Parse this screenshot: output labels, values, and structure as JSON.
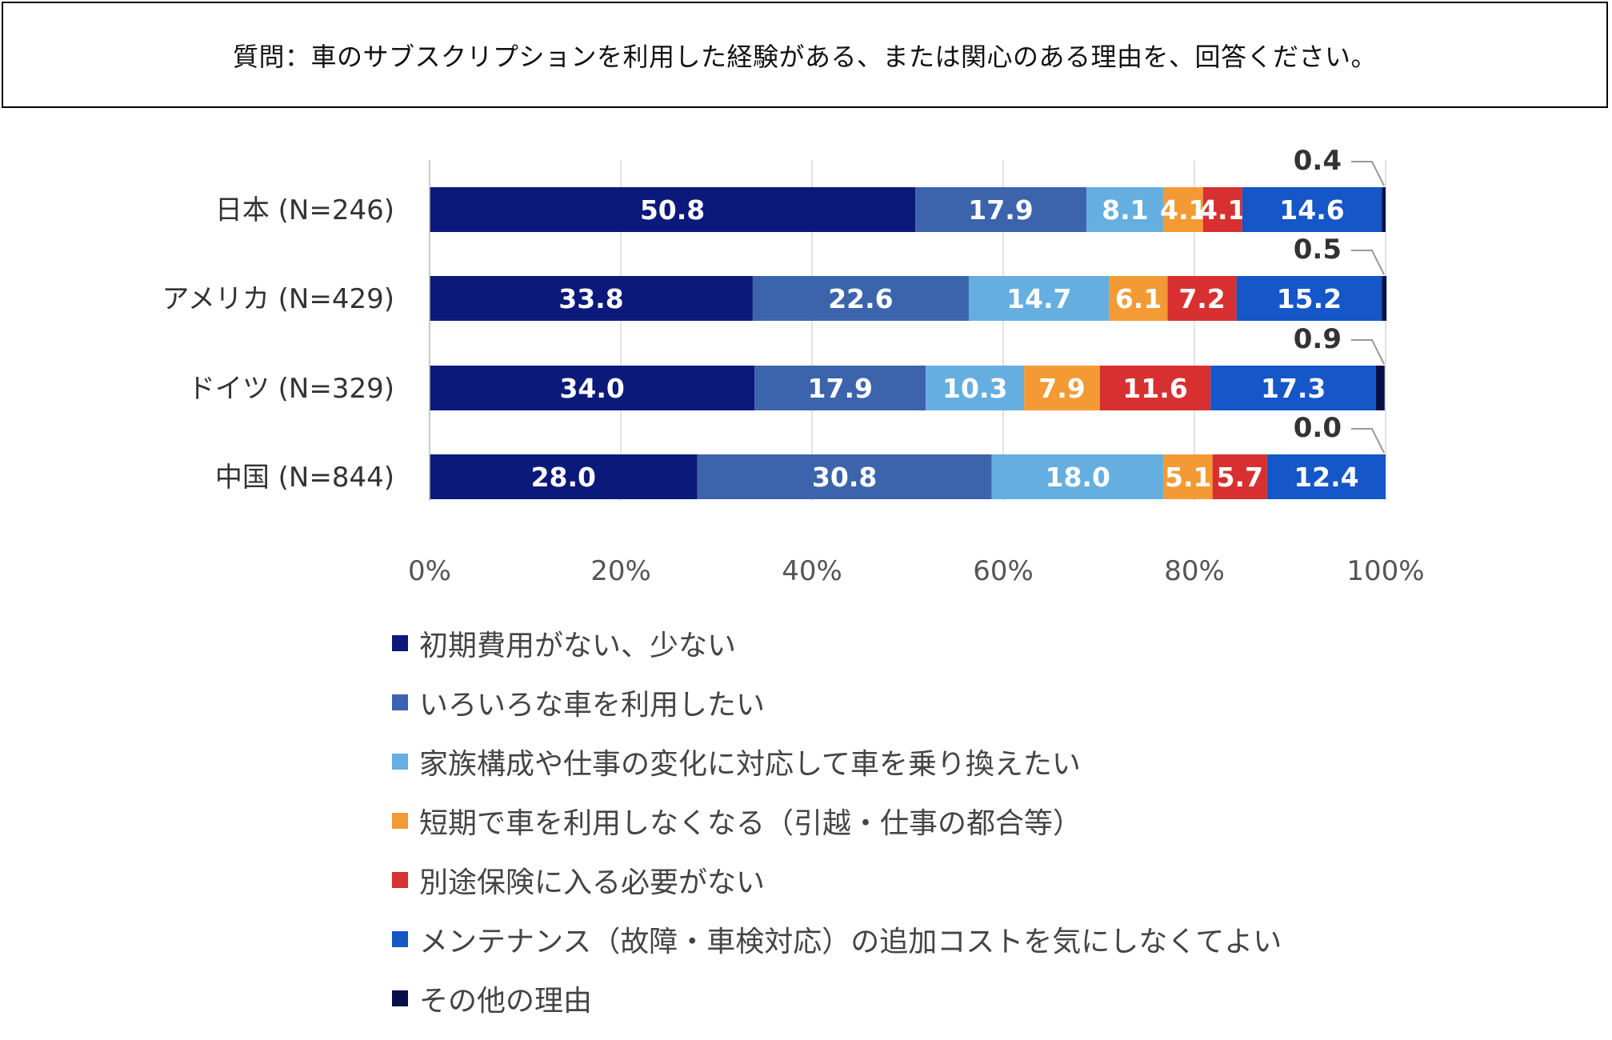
{
  "question": "質問：車のサブスクリプションを利用した経験がある、または関心のある理由を、回答ください。",
  "chart_data": {
    "type": "bar",
    "orientation": "horizontal",
    "stacked": true,
    "categories": [
      "日本 (N=246)",
      "アメリカ (N=429)",
      "ドイツ (N=329)",
      "中国 (N=844)"
    ],
    "series": [
      {
        "name": "初期費用がない、少ない",
        "color": "#0b1a7a",
        "values": [
          50.8,
          33.8,
          34.0,
          28.0
        ]
      },
      {
        "name": "いろいろな車を利用したい",
        "color": "#3c64ad",
        "values": [
          17.9,
          22.6,
          17.9,
          30.8
        ]
      },
      {
        "name": "家族構成や仕事の変化に対応して車を乗り換えたい",
        "color": "#65aee0",
        "values": [
          8.1,
          14.7,
          10.3,
          18.0
        ]
      },
      {
        "name": "短期で車を利用しなくなる（引越・仕事の都合等）",
        "color": "#f49a34",
        "values": [
          4.1,
          6.1,
          7.9,
          5.1
        ]
      },
      {
        "name": "別途保険に入る必要がない",
        "color": "#d83030",
        "values": [
          4.1,
          7.2,
          11.6,
          5.7
        ]
      },
      {
        "name": "メンテナンス（故障・車検対応）の追加コストを気にしなくてよい",
        "color": "#1556c8",
        "values": [
          14.6,
          15.2,
          17.3,
          12.4
        ]
      },
      {
        "name": "その他の理由",
        "color": "#081048",
        "values": [
          0.4,
          0.5,
          0.9,
          0.0
        ]
      }
    ],
    "value_labels": [
      [
        "50.8",
        "17.9",
        "8.1",
        "4.1",
        "4.1",
        "14.6",
        "0.4"
      ],
      [
        "33.8",
        "22.6",
        "14.7",
        "6.1",
        "7.2",
        "15.2",
        "0.5"
      ],
      [
        "34.0",
        "17.9",
        "10.3",
        "7.9",
        "11.6",
        "17.3",
        "0.9"
      ],
      [
        "28.0",
        "30.8",
        "18.0",
        "5.1",
        "5.7",
        "12.4",
        "0.0"
      ]
    ],
    "x_ticks": [
      "0%",
      "20%",
      "40%",
      "60%",
      "80%",
      "100%"
    ],
    "xlim": [
      0,
      100
    ],
    "grid": true,
    "legend_position": "bottom-left"
  }
}
